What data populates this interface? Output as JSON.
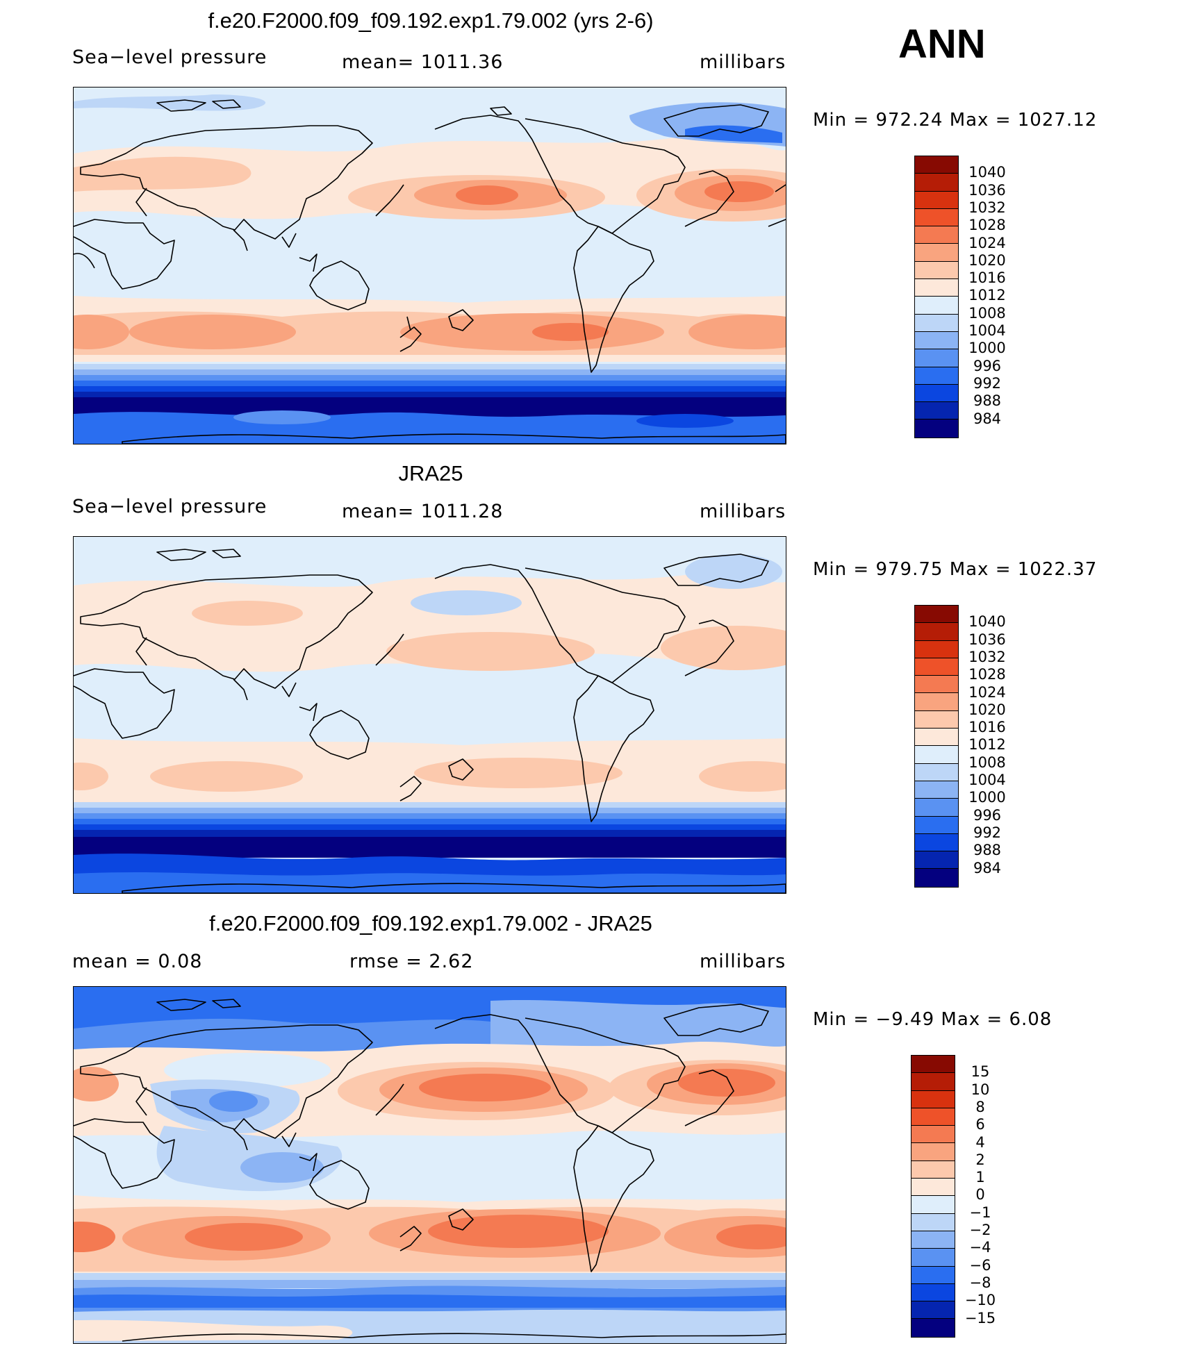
{
  "season": "ANN",
  "palette_abs": [
    "#04007f",
    "#0525b0",
    "#0b46e0",
    "#2a6ef0",
    "#5a92f2",
    "#8cb4f4",
    "#bdd6f7",
    "#dfeefb",
    "#fde8da",
    "#fcc9ad",
    "#f9a47f",
    "#f47a52",
    "#ee5229",
    "#d8320f",
    "#b51d06",
    "#870a02"
  ],
  "palette_diff": [
    "#04007f",
    "#0525b0",
    "#0b46e0",
    "#2a6ef0",
    "#5a92f2",
    "#8cb4f4",
    "#bdd6f7",
    "#dfeefb",
    "#fde8da",
    "#fcc9ad",
    "#f9a47f",
    "#f47a52",
    "#ee5229",
    "#d8320f",
    "#b51d06",
    "#870a02"
  ],
  "panels": [
    {
      "title": "f.e20.F2000.f09_f09.192.exp1.79.002 (yrs 2-6)",
      "left_label": "Sea−level pressure",
      "center_label": "mean=  1011.36",
      "right_label": "millibars",
      "minmax": "Min  =  972.24  Max  =  1027.12",
      "colorbar_labels": [
        "1040",
        "1036",
        "1032",
        "1028",
        "1024",
        "1020",
        "1016",
        "1012",
        "1008",
        "1004",
        "1000",
        "996",
        "992",
        "988",
        "984"
      ]
    },
    {
      "title": "JRA25",
      "left_label": "Sea−level pressure",
      "center_label": "mean=  1011.28",
      "right_label": "millibars",
      "minmax": "Min  =  979.75  Max  =  1022.37",
      "colorbar_labels": [
        "1040",
        "1036",
        "1032",
        "1028",
        "1024",
        "1020",
        "1016",
        "1012",
        "1008",
        "1004",
        "1000",
        "996",
        "992",
        "988",
        "984"
      ]
    },
    {
      "title": "f.e20.F2000.f09_f09.192.exp1.79.002 - JRA25",
      "left_label": "mean =     0.08",
      "center_label": "rmse =     2.62",
      "right_label": "millibars",
      "minmax": "Min  =   −9.49  Max  =      6.08",
      "colorbar_labels": [
        "15",
        "10",
        "8",
        "6",
        "4",
        "2",
        "1",
        "0",
        "−1",
        "−2",
        "−4",
        "−6",
        "−8",
        "−10",
        "−15"
      ]
    }
  ]
}
